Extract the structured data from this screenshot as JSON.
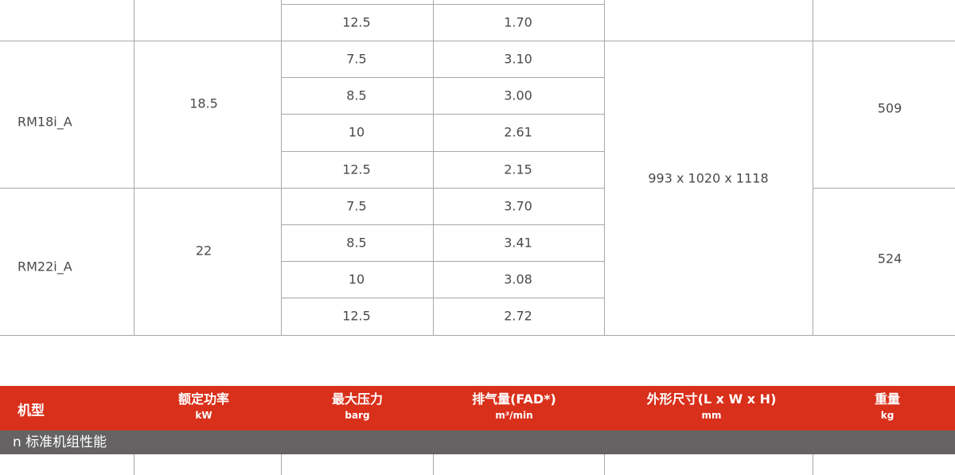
{
  "top_partial_row": {
    "pressure": "12.5",
    "fad": "1.70"
  },
  "models": [
    {
      "model": "RM18i_A",
      "power": "18.5",
      "weight": "509",
      "rows": [
        {
          "pressure": "7.5",
          "fad": "3.10"
        },
        {
          "pressure": "8.5",
          "fad": "3.00"
        },
        {
          "pressure": "10",
          "fad": "2.61"
        },
        {
          "pressure": "12.5",
          "fad": "2.15"
        }
      ]
    },
    {
      "model": "RM22i_A",
      "power": "22",
      "weight": "524",
      "rows": [
        {
          "pressure": "7.5",
          "fad": "3.70"
        },
        {
          "pressure": "8.5",
          "fad": "3.41"
        },
        {
          "pressure": "10",
          "fad": "3.08"
        },
        {
          "pressure": "12.5",
          "fad": "2.72"
        }
      ]
    }
  ],
  "dimensions": "993 x 1020 x 1118",
  "header": {
    "model": "机型",
    "power": {
      "label": "额定功率",
      "unit": "kW"
    },
    "pressure": {
      "label": "最大压力",
      "unit": "barg"
    },
    "fad": {
      "label": "排气量(FAD*)",
      "unit": "m³/min"
    },
    "dims": {
      "label": "外形尺寸(L x W x H)",
      "unit": "mm"
    },
    "weight": {
      "label": "重量",
      "unit": "kg"
    }
  },
  "section_title": "n 标准机组性能",
  "colors": {
    "header_bg": "#d9301b",
    "section_bg": "#646263",
    "grid": "#a8a8a8"
  }
}
